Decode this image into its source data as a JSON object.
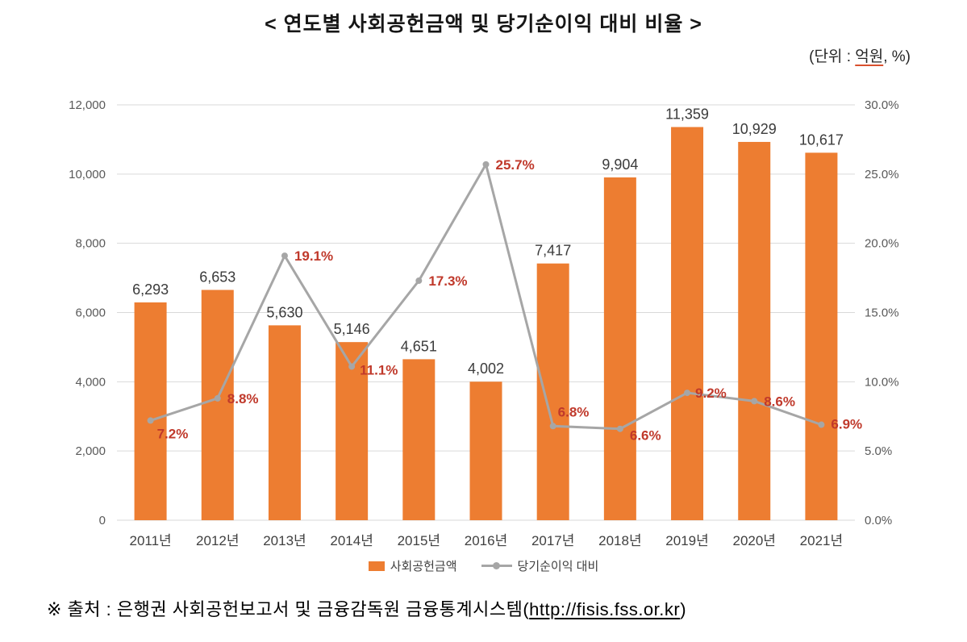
{
  "title": "< 연도별 사회공헌금액 및 당기순이익 대비 비율 >",
  "unit": {
    "prefix": "(단위 : ",
    "underlined": "억원",
    "suffix": ", %)"
  },
  "source": {
    "prefix": "※ 출처 : 은행권 사회공헌보고서 및 금융감독원 금융통계시스템(",
    "link": "http://fisis.fss.or.kr",
    "suffix": ")"
  },
  "chart_data": {
    "type": "bar",
    "subtype": "combo-bar-line",
    "categories": [
      "2011년",
      "2012년",
      "2013년",
      "2014년",
      "2015년",
      "2016년",
      "2017년",
      "2018년",
      "2019년",
      "2020년",
      "2021년"
    ],
    "series": [
      {
        "name": "사회공헌금액",
        "type": "bar",
        "axis": "left",
        "color": "#ED7D31",
        "values": [
          6293,
          6653,
          5630,
          5146,
          4651,
          4002,
          7417,
          9904,
          11359,
          10929,
          10617
        ]
      },
      {
        "name": "당기순이익 대비",
        "type": "line",
        "axis": "right",
        "color": "#A6A6A6",
        "label_color": "#C0392B",
        "values": [
          7.2,
          8.8,
          19.1,
          11.1,
          17.3,
          25.7,
          6.8,
          6.6,
          9.2,
          8.6,
          6.9
        ]
      }
    ],
    "left_axis": {
      "min": 0,
      "max": 12000,
      "step": 2000
    },
    "right_axis": {
      "min": 0,
      "max": 30,
      "step": 5,
      "suffix": "%"
    },
    "grid": true,
    "legend_position": "bottom"
  }
}
